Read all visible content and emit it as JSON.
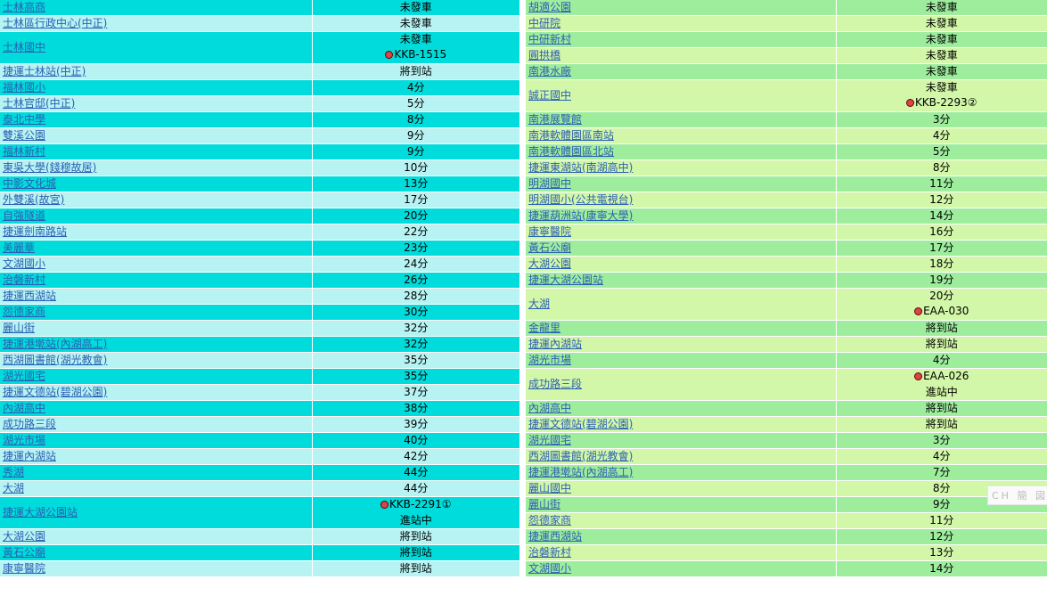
{
  "left": {
    "rows": [
      {
        "stop": "士林高商",
        "eta": "未發車",
        "bus": ""
      },
      {
        "stop": "士林區行政中心(中正)",
        "eta": "未發車",
        "bus": ""
      },
      {
        "stop": "士林國中",
        "eta": "未發車",
        "bus": "KKB-1515"
      },
      {
        "stop": "捷運士林站(中正)",
        "eta": "將到站",
        "bus": ""
      },
      {
        "stop": "福林國小",
        "eta": "4分",
        "bus": ""
      },
      {
        "stop": "士林官邸(中正)",
        "eta": "5分",
        "bus": ""
      },
      {
        "stop": "泰北中學",
        "eta": "8分",
        "bus": ""
      },
      {
        "stop": "雙溪公園",
        "eta": "9分",
        "bus": ""
      },
      {
        "stop": "福林新村",
        "eta": "9分",
        "bus": ""
      },
      {
        "stop": "東吳大學(錢穆故居)",
        "eta": "10分",
        "bus": ""
      },
      {
        "stop": "中影文化城",
        "eta": "13分",
        "bus": ""
      },
      {
        "stop": "外雙溪(故宮)",
        "eta": "17分",
        "bus": ""
      },
      {
        "stop": "自強隧道",
        "eta": "20分",
        "bus": ""
      },
      {
        "stop": "捷運劍南路站",
        "eta": "22分",
        "bus": ""
      },
      {
        "stop": "美麗華",
        "eta": "23分",
        "bus": ""
      },
      {
        "stop": "文湖國小",
        "eta": "24分",
        "bus": ""
      },
      {
        "stop": "治磐新村",
        "eta": "26分",
        "bus": ""
      },
      {
        "stop": "捷運西湖站",
        "eta": "28分",
        "bus": ""
      },
      {
        "stop": "怨德家商",
        "eta": "30分",
        "bus": ""
      },
      {
        "stop": "麗山街",
        "eta": "32分",
        "bus": ""
      },
      {
        "stop": "捷運港墘站(內湖高工)",
        "eta": "32分",
        "bus": ""
      },
      {
        "stop": "西湖圖書館(湖光教會)",
        "eta": "35分",
        "bus": ""
      },
      {
        "stop": "湖光國宅",
        "eta": "35分",
        "bus": ""
      },
      {
        "stop": "捷運文德站(碧湖公園)",
        "eta": "37分",
        "bus": ""
      },
      {
        "stop": "內湖高中",
        "eta": "38分",
        "bus": ""
      },
      {
        "stop": "成功路三段",
        "eta": "39分",
        "bus": ""
      },
      {
        "stop": "湖光市場",
        "eta": "40分",
        "bus": ""
      },
      {
        "stop": "捷運內湖站",
        "eta": "42分",
        "bus": ""
      },
      {
        "stop": "秀湖",
        "eta": "44分",
        "bus": ""
      },
      {
        "stop": "大湖",
        "eta": "44分",
        "bus": ""
      },
      {
        "stop": "捷運大湖公園站",
        "eta": "進站中",
        "bus": "KKB-2291①",
        "bus_first": true
      },
      {
        "stop": "大湖公園",
        "eta": "將到站",
        "bus": ""
      },
      {
        "stop": "黃石公廟",
        "eta": "將到站",
        "bus": ""
      },
      {
        "stop": "康寧醫院",
        "eta": "將到站",
        "bus": ""
      }
    ]
  },
  "right": {
    "rows": [
      {
        "stop": "胡適公園",
        "eta": "未發車",
        "bus": ""
      },
      {
        "stop": "中研院",
        "eta": "未發車",
        "bus": ""
      },
      {
        "stop": "中研新村",
        "eta": "未發車",
        "bus": ""
      },
      {
        "stop": "圓拱橋",
        "eta": "未發車",
        "bus": ""
      },
      {
        "stop": "南港水廠",
        "eta": "未發車",
        "bus": ""
      },
      {
        "stop": "誠正國中",
        "eta": "未發車",
        "bus": "KKB-2293②"
      },
      {
        "stop": "南港展覽館",
        "eta": "3分",
        "bus": ""
      },
      {
        "stop": "南港軟體園區南站",
        "eta": "4分",
        "bus": ""
      },
      {
        "stop": "南港軟體園區北站",
        "eta": "5分",
        "bus": ""
      },
      {
        "stop": "捷運東湖站(南湖高中)",
        "eta": "8分",
        "bus": ""
      },
      {
        "stop": "明湖國中",
        "eta": "11分",
        "bus": ""
      },
      {
        "stop": "明湖國小(公共電視台)",
        "eta": "12分",
        "bus": ""
      },
      {
        "stop": "捷運葫洲站(康寧大學)",
        "eta": "14分",
        "bus": ""
      },
      {
        "stop": "康寧醫院",
        "eta": "16分",
        "bus": ""
      },
      {
        "stop": "黃石公廟",
        "eta": "17分",
        "bus": ""
      },
      {
        "stop": "大湖公園",
        "eta": "18分",
        "bus": ""
      },
      {
        "stop": "捷運大湖公園站",
        "eta": "19分",
        "bus": ""
      },
      {
        "stop": "大湖",
        "eta": "20分",
        "bus": "EAA-030"
      },
      {
        "stop": "金龍里",
        "eta": "將到站",
        "bus": ""
      },
      {
        "stop": "捷運內湖站",
        "eta": "將到站",
        "bus": ""
      },
      {
        "stop": "湖光市場",
        "eta": "4分",
        "bus": ""
      },
      {
        "stop": "成功路三段",
        "eta": "進站中",
        "bus": "EAA-026",
        "bus_first": true
      },
      {
        "stop": "內湖高中",
        "eta": "將到站",
        "bus": ""
      },
      {
        "stop": "捷運文德站(碧湖公園)",
        "eta": "將到站",
        "bus": ""
      },
      {
        "stop": "湖光國宅",
        "eta": "3分",
        "bus": ""
      },
      {
        "stop": "西湖圖書館(湖光教會)",
        "eta": "4分",
        "bus": ""
      },
      {
        "stop": "捷運港墘站(內湖高工)",
        "eta": "7分",
        "bus": ""
      },
      {
        "stop": "麗山國中",
        "eta": "8分",
        "bus": ""
      },
      {
        "stop": "麗山街",
        "eta": "9分",
        "bus": ""
      },
      {
        "stop": "怨德家商",
        "eta": "11分",
        "bus": ""
      },
      {
        "stop": "捷運西湖站",
        "eta": "12分",
        "bus": ""
      },
      {
        "stop": "治磐新村",
        "eta": "13分",
        "bus": ""
      },
      {
        "stop": "文湖國小",
        "eta": "14分",
        "bus": ""
      }
    ]
  },
  "ime_tip": "CH 簡 図",
  "colors": {
    "left_dark": "#00dcdc",
    "left_light": "#b8f3f3",
    "right_dark": "#9ded9d",
    "right_light": "#d2f7a8",
    "link": "#2b5fb3"
  }
}
